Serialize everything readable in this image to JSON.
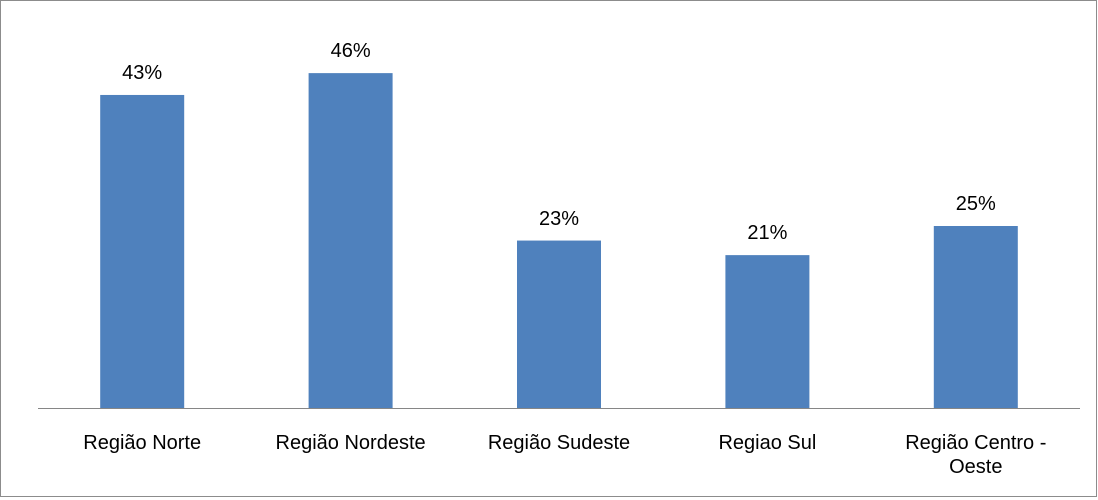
{
  "chart_data": {
    "type": "bar",
    "categories": [
      "Região Norte",
      "Região Nordeste",
      "Região Sudeste",
      "Regiao Sul",
      "Região Centro - Oeste"
    ],
    "values": [
      43,
      46,
      23,
      21,
      25
    ],
    "value_labels": [
      "43%",
      "46%",
      "23%",
      "21%",
      "25%"
    ],
    "color": "#4f81bd"
  }
}
